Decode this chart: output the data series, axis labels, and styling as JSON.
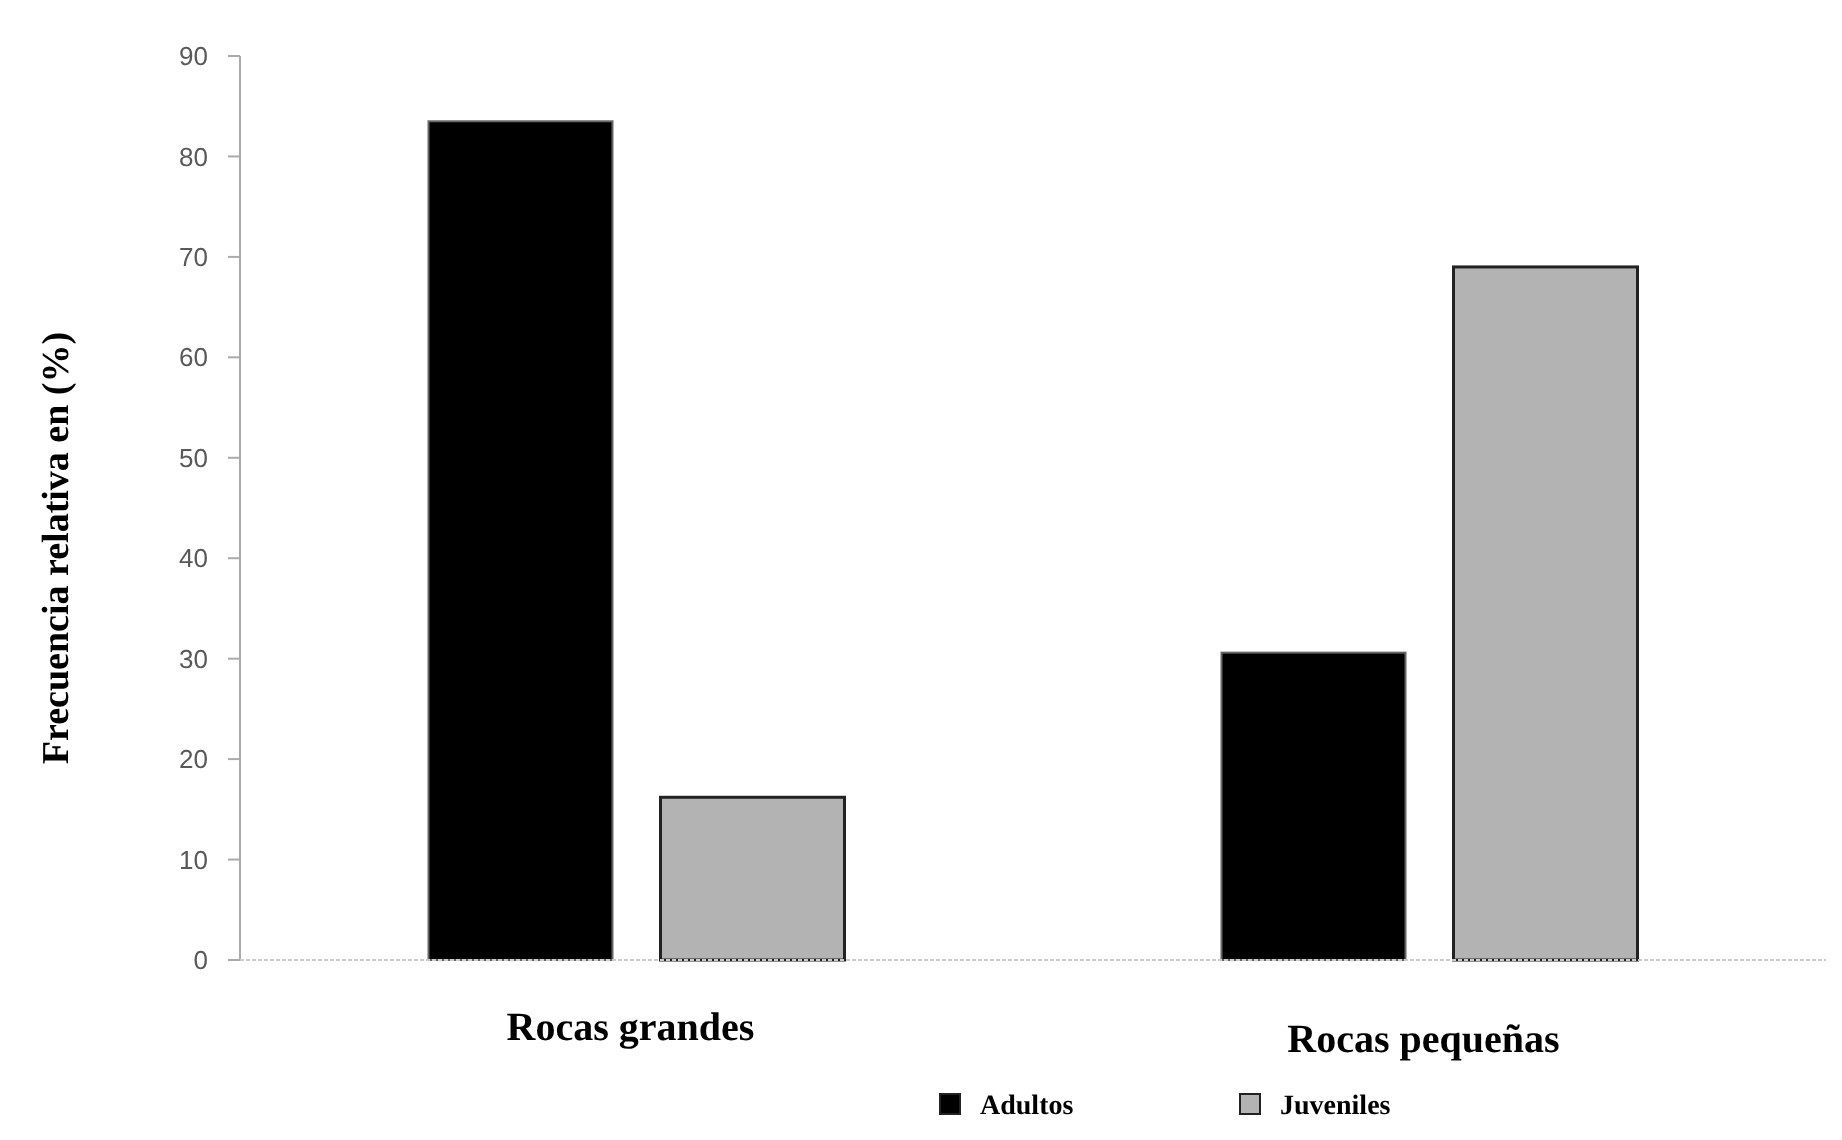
{
  "chart_data": {
    "type": "bar",
    "ylabel": "Frecuencia relativa en (%)",
    "categories": [
      "Rocas grandes",
      "Rocas pequeñas"
    ],
    "series": [
      {
        "name": "Adultos",
        "color": "#000000",
        "values": [
          83.5,
          30.6
        ]
      },
      {
        "name": "Juveniles",
        "color": "#b3b3b3",
        "values": [
          16.2,
          69.0
        ]
      }
    ],
    "ylim": [
      0,
      90
    ],
    "yticks": [
      0,
      10,
      20,
      30,
      40,
      50,
      60,
      70,
      80,
      90
    ],
    "legend": "bottom"
  }
}
